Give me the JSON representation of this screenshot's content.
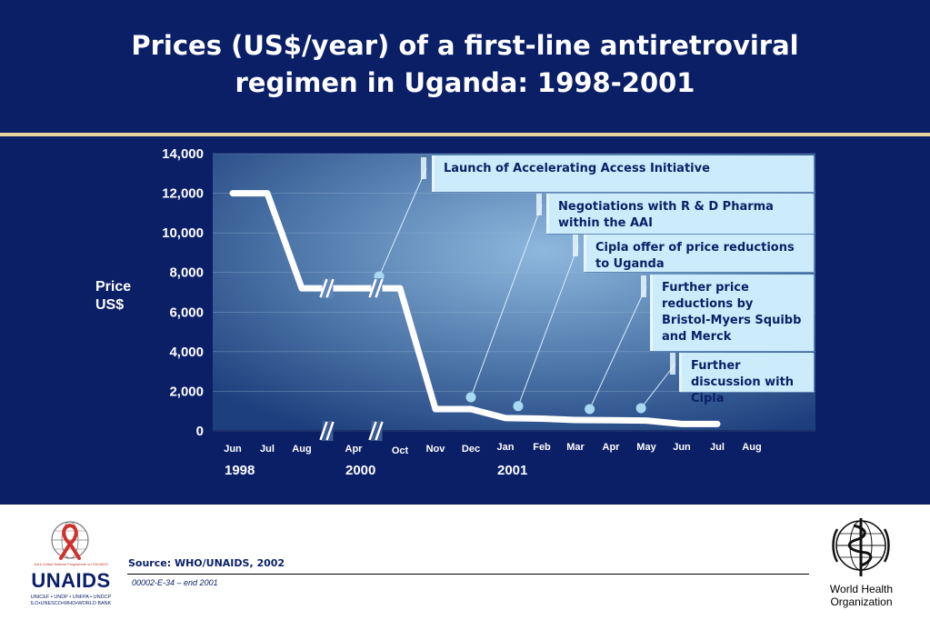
{
  "slide": {
    "title_line1": "Prices (US$/year) of a first-line antiretroviral",
    "title_line2": "regimen in Uganda:  1998-2001",
    "background_color": "#0a1f66",
    "accent_color": "#e8d59a"
  },
  "chart_data": {
    "type": "line",
    "title": "Prices (US$/year) of a first-line antiretroviral regimen in Uganda: 1998-2001",
    "ylabel_line1": "Price",
    "ylabel_line2": "US$",
    "ylim": [
      0,
      14000
    ],
    "yticks": [
      0,
      2000,
      4000,
      6000,
      8000,
      10000,
      12000,
      14000
    ],
    "ytick_labels": [
      "0",
      "2,000",
      "4,000",
      "6,000",
      "8,000",
      "10,000",
      "12,000",
      "14,000"
    ],
    "categories": [
      "Jun",
      "Jul",
      "Aug",
      "Apr",
      "Oct",
      "Nov",
      "Dec",
      "Jan",
      "Feb",
      "Mar",
      "Apr",
      "May",
      "Jun",
      "Jul",
      "Aug"
    ],
    "years": [
      {
        "label": "1998",
        "index": 0
      },
      {
        "label": "2000",
        "index": 3
      },
      {
        "label": "2001",
        "index": 7
      }
    ],
    "axis_breaks_after_index": [
      2,
      3
    ],
    "series": [
      {
        "name": "Price",
        "points": [
          {
            "x": 0,
            "y": 12000
          },
          {
            "x": 1,
            "y": 12000
          },
          {
            "x": 2,
            "y": 7200
          },
          {
            "x": 3,
            "y": 7200
          },
          {
            "x": 4,
            "y": 7200
          },
          {
            "x": 5,
            "y": 1100
          },
          {
            "x": 6,
            "y": 1100
          },
          {
            "x": 7,
            "y": 650
          },
          {
            "x": 8,
            "y": 620
          },
          {
            "x": 9,
            "y": 550
          },
          {
            "x": 10,
            "y": 540
          },
          {
            "x": 11,
            "y": 520
          },
          {
            "x": 12,
            "y": 350
          },
          {
            "x": 13,
            "y": 350
          }
        ]
      }
    ],
    "annotations": [
      {
        "text": "Launch of Accelerating Access Initiative",
        "x": 3.55,
        "y": 7800
      },
      {
        "text": "Negotiations with R & D Pharma within the AAI",
        "x": 6.0,
        "y": 1700
      },
      {
        "text": "Cipla offer of price reductions to Uganda",
        "x": 7.35,
        "y": 1250
      },
      {
        "text": "Further price reductions by Bristol-Myers Squibb and Merck",
        "x": 9.4,
        "y": 1100
      },
      {
        "text": "Further discussion with Cipla",
        "x": 10.85,
        "y": 1150
      }
    ],
    "grid": true,
    "line_color": "#ffffff",
    "marker_color": "#a9d8f2",
    "callout_color": "#ccecfb"
  },
  "footer": {
    "source": "Source:  WHO/UNAIDS, 2002",
    "docref": "00002-E-34 – end 2001",
    "unaids_name": "UNAIDS",
    "unaids_tagline": "Joint United Nations Programme on HIV/AIDS",
    "unaids_members_line1": "UNICEF • UNDP • UNFPA • UNDCP",
    "unaids_members_line2": "ILO•UNESCO•WHO•WORLD BANK",
    "who_line1": "World Health",
    "who_line2": "Organization"
  }
}
